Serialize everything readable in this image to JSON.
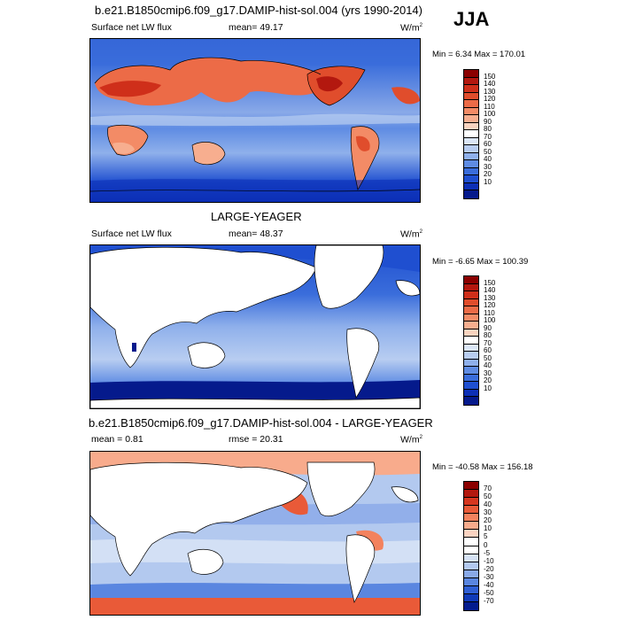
{
  "season": "JJA",
  "panel1": {
    "title": "b.e21.B1850cmip6.f09_g17.DAMIP-hist-sol.004 (yrs 1990-2014)",
    "variable": "Surface net LW flux",
    "stat": "mean=  49.17",
    "units_base": "W/m",
    "units_exp": "2",
    "minmax": "Min =   6.34 Max = 170.01",
    "colorbar": {
      "labels": [
        "150",
        "140",
        "130",
        "120",
        "110",
        "100",
        "90",
        "80",
        "70",
        "60",
        "50",
        "40",
        "30",
        "20",
        "10"
      ],
      "colors": [
        "#8b0000",
        "#b3180f",
        "#cf2f1a",
        "#e04d2c",
        "#ec6b47",
        "#f38b66",
        "#f7ae8f",
        "#fad4c0",
        "#ffffff",
        "#dbe6f7",
        "#b8cdf1",
        "#8fb0eb",
        "#5f8ce3",
        "#3a6ddb",
        "#1f4fd0",
        "#0c2fb6",
        "#051a8c"
      ]
    }
  },
  "panel2": {
    "title": "LARGE-YEAGER",
    "variable": "Surface net LW flux",
    "stat": "mean=  48.37",
    "units_base": "W/m",
    "units_exp": "2",
    "minmax": "Min =  -6.65 Max = 100.39",
    "colorbar": {
      "labels": [
        "150",
        "140",
        "130",
        "120",
        "110",
        "100",
        "90",
        "80",
        "70",
        "60",
        "50",
        "40",
        "30",
        "20",
        "10"
      ],
      "colors": [
        "#8b0000",
        "#b3180f",
        "#cf2f1a",
        "#e04d2c",
        "#ec6b47",
        "#f38b66",
        "#f7ae8f",
        "#fad4c0",
        "#ffffff",
        "#dbe6f7",
        "#b8cdf1",
        "#8fb0eb",
        "#5f8ce3",
        "#3a6ddb",
        "#1f4fd0",
        "#0c2fb6",
        "#051a8c"
      ]
    }
  },
  "panel3": {
    "title": "b.e21.B1850cmip6.f09_g17.DAMIP-hist-sol.004 - LARGE-YEAGER",
    "stat_mean": "mean =   0.81",
    "stat_rmse": "rmse =  20.31",
    "units_base": "W/m",
    "units_exp": "2",
    "minmax": "Min = -40.58 Max = 156.18",
    "colorbar": {
      "labels": [
        "70",
        "50",
        "40",
        "30",
        "20",
        "10",
        "5",
        "0",
        "-5",
        "-10",
        "-20",
        "-30",
        "-40",
        "-50",
        "-70"
      ],
      "colors": [
        "#8b0000",
        "#b3180f",
        "#d6361f",
        "#e95a38",
        "#f3825e",
        "#f8ab8c",
        "#fbd3c1",
        "#ffffff",
        "#ffffff",
        "#d6e2f5",
        "#b3c9ef",
        "#89a9e8",
        "#5a86e0",
        "#2f5fd4",
        "#0f3ab8",
        "#031c8e"
      ]
    }
  }
}
